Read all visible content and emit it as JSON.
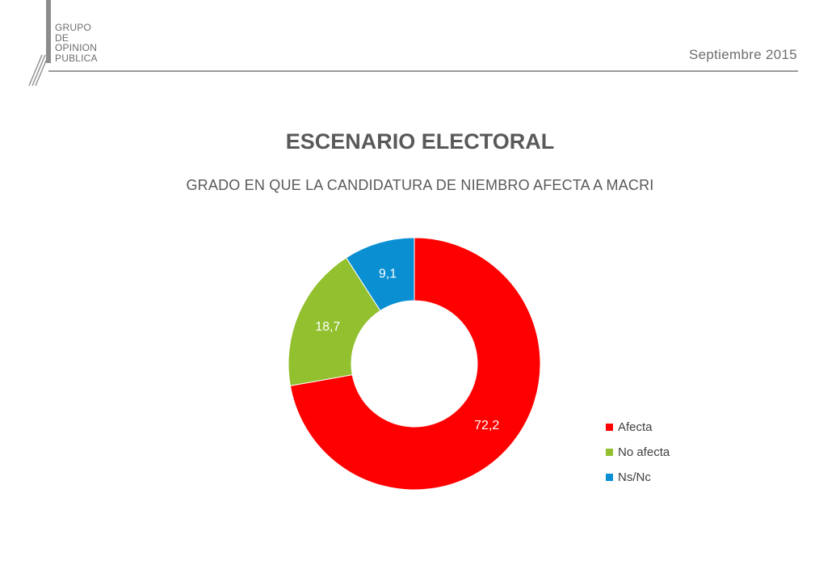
{
  "header": {
    "logo_lines": [
      "GRUPO",
      "DE",
      "OPINION",
      "PUBLICA"
    ],
    "date": "Septiembre 2015"
  },
  "title": "ESCENARIO ELECTORAL",
  "subtitle": "GRADO EN QUE LA CANDIDATURA DE NIEMBRO AFECTA A MACRI",
  "chart_data": {
    "type": "pie",
    "donut": true,
    "title": "ESCENARIO ELECTORAL",
    "subtitle": "GRADO EN QUE LA CANDIDATURA DE NIEMBRO AFECTA A MACRI",
    "categories": [
      "Afecta",
      "No afecta",
      "Ns/Nc"
    ],
    "values": [
      72.2,
      18.7,
      9.1
    ],
    "data_labels": [
      "72,2",
      "18,7",
      "9,1"
    ],
    "colors": [
      "#ff0000",
      "#92c02e",
      "#0a8fd3"
    ],
    "legend_position": "bottom-right"
  }
}
